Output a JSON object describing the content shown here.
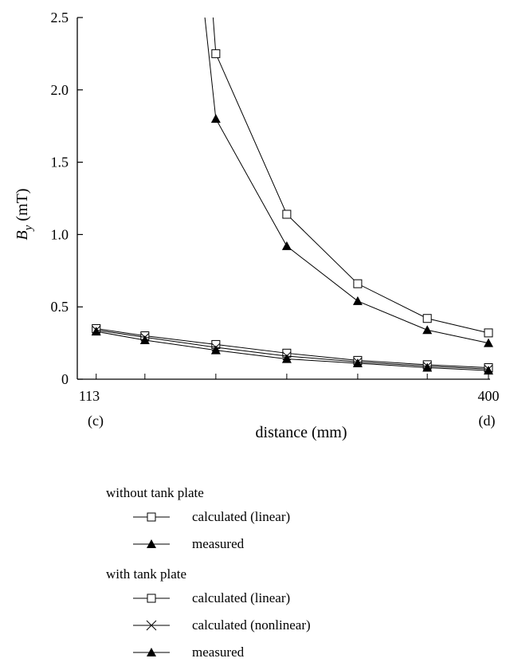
{
  "chart_data": {
    "type": "line",
    "title": "",
    "xlabel": "distance (mm)",
    "ylabel_main": "B",
    "ylabel_sub": "y",
    "ylabel_unit": " (mT)",
    "x_range": [
      113,
      400
    ],
    "ylim": [
      0,
      2.5
    ],
    "yticks": [
      "0",
      "0.5",
      "1.0",
      "1.5",
      "2.0",
      "2.5"
    ],
    "ytick_values": [
      0,
      0.5,
      1.0,
      1.5,
      2.0,
      2.5
    ],
    "xtick_labels": [
      "113",
      "400"
    ],
    "xtick_values": [
      113,
      400
    ],
    "x_end_labels": [
      "(c)",
      "(d)"
    ],
    "grid": false,
    "series": [
      {
        "name": "calculated (linear)",
        "group": "without tank plate",
        "marker": "square-open",
        "x": [
          204,
          255,
          306,
          356,
          400
        ],
        "y": [
          2.25,
          1.14,
          0.66,
          0.42,
          0.32
        ],
        "lead_in": [
          [
            195,
            3.4
          ]
        ]
      },
      {
        "name": "measured",
        "group": "without tank plate",
        "marker": "triangle-filled",
        "x": [
          204,
          255,
          306,
          356,
          400
        ],
        "y": [
          1.8,
          0.92,
          0.54,
          0.34,
          0.25
        ],
        "lead_in": [
          [
            186,
            3.4
          ]
        ]
      },
      {
        "name": "calculated (linear)",
        "group": "with tank plate",
        "marker": "square-open",
        "x": [
          118,
          153,
          204,
          255,
          306,
          356,
          400
        ],
        "y": [
          0.35,
          0.3,
          0.24,
          0.18,
          0.13,
          0.1,
          0.08
        ]
      },
      {
        "name": "calculated (nonlinear)",
        "group": "with tank plate",
        "marker": "cross",
        "x": [
          118,
          153,
          204,
          255,
          306,
          356,
          400
        ],
        "y": [
          0.34,
          0.29,
          0.22,
          0.16,
          0.12,
          0.09,
          0.07
        ]
      },
      {
        "name": "measured",
        "group": "with tank plate",
        "marker": "triangle-filled",
        "x": [
          118,
          153,
          204,
          255,
          306,
          356,
          400
        ],
        "y": [
          0.33,
          0.27,
          0.2,
          0.14,
          0.11,
          0.08,
          0.06
        ]
      }
    ],
    "legend": {
      "position": "below",
      "groups": [
        {
          "title": "without tank plate",
          "items": [
            {
              "label": "calculated (linear)",
              "marker": "square-open"
            },
            {
              "label": "measured",
              "marker": "triangle-filled"
            }
          ]
        },
        {
          "title": "with tank plate",
          "items": [
            {
              "label": "calculated (linear)",
              "marker": "square-open"
            },
            {
              "label": "calculated (nonlinear)",
              "marker": "cross"
            },
            {
              "label": "measured",
              "marker": "triangle-filled"
            }
          ]
        }
      ]
    }
  }
}
